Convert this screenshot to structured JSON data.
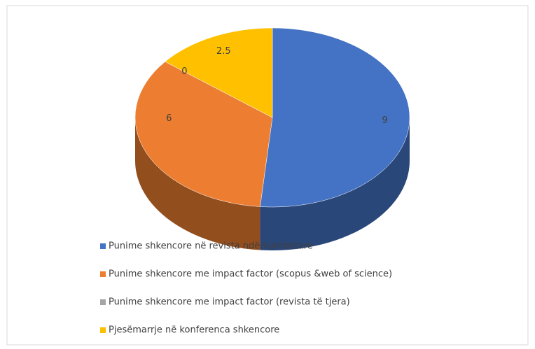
{
  "chart_data": {
    "type": "pie3d",
    "categories": [
      "Punime shkencore në revista ndërkombëtare",
      "Punime shkencore me impact factor (scopus &web of science)",
      "Punime shkencore me impact factor (revista të tjera)",
      "Pjesëmarrje në konferenca shkencore"
    ],
    "values": [
      9,
      6,
      0,
      2.5
    ],
    "colors": [
      "#4472c4",
      "#ed7d31",
      "#a5a5a5",
      "#ffc000"
    ],
    "legend": "bottom"
  }
}
